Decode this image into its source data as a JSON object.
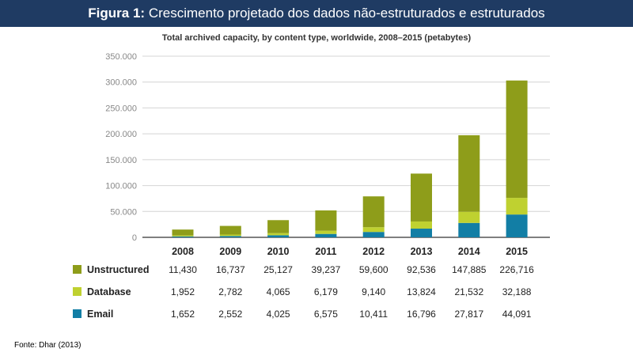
{
  "header": {
    "figure_label": "Figura 1:",
    "figure_title": "Crescimento projetado dos dados não-estruturados e estruturados"
  },
  "source": "Fonte: Dhar (2013)",
  "colors": {
    "header_bg": "#1f3b63",
    "unstructured": "#8e9d1a",
    "database": "#bfd130",
    "email": "#127ea5",
    "grid": "#d4d4d4"
  },
  "chart_data": {
    "type": "bar",
    "stacked": true,
    "title": "Total archived capacity, by content type, worldwide, 2008–2015 (petabytes)",
    "categories": [
      "2008",
      "2009",
      "2010",
      "2011",
      "2012",
      "2013",
      "2014",
      "2015"
    ],
    "y_ticks": [
      0,
      50000,
      100000,
      150000,
      200000,
      250000,
      300000,
      350000
    ],
    "y_tick_labels": [
      "0",
      "50.000",
      "100.000",
      "150.000",
      "200.000",
      "250.000",
      "300.000",
      "350.000"
    ],
    "ylim": [
      0,
      350000
    ],
    "grid": true,
    "series": [
      {
        "name": "Unstructured",
        "color_key": "unstructured",
        "values": [
          11430,
          16737,
          25127,
          39237,
          59600,
          92536,
          147885,
          226716
        ],
        "labels": [
          "11,430",
          "16,737",
          "25,127",
          "39,237",
          "59,600",
          "92,536",
          "147,885",
          "226,716"
        ]
      },
      {
        "name": "Database",
        "color_key": "database",
        "values": [
          1952,
          2782,
          4065,
          6179,
          9140,
          13824,
          21532,
          32188
        ],
        "labels": [
          "1,952",
          "2,782",
          "4,065",
          "6,179",
          "9,140",
          "13,824",
          "21,532",
          "32,188"
        ]
      },
      {
        "name": "Email",
        "color_key": "email",
        "values": [
          1652,
          2552,
          4025,
          6575,
          10411,
          16796,
          27817,
          44091
        ],
        "labels": [
          "1,652",
          "2,552",
          "4,025",
          "6,575",
          "10,411",
          "16,796",
          "27,817",
          "44,091"
        ]
      }
    ]
  }
}
